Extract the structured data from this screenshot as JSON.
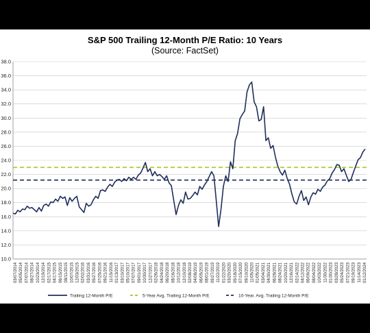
{
  "chart_data": {
    "type": "line",
    "title": "S&P 500 Trailing 12-Month P/E Ratio: 10 Years",
    "subtitle": "(Source: FactSet)",
    "ylim": [
      10.0,
      38.0
    ],
    "y_ticks": [
      "10.0",
      "12.0",
      "14.0",
      "16.0",
      "18.0",
      "20.0",
      "22.0",
      "24.0",
      "26.0",
      "28.0",
      "30.0",
      "32.0",
      "34.0",
      "36.0",
      "38.0"
    ],
    "x_ticks": [
      "03/07/2014",
      "05/05/2014",
      "07/07/2014",
      "08/27/2014",
      "10/23/2014",
      "12/19/2014",
      "02/17/2015",
      "04/17/2015",
      "06/15/2015",
      "08/11/2015",
      "10/07/2015",
      "12/03/2015",
      "02/02/2016",
      "03/31/2016",
      "05/27/2016",
      "07/25/2016",
      "09/21/2016",
      "11/15/2016",
      "01/13/2017",
      "03/10/2017",
      "05/10/2017",
      "07/07/2017",
      "09/01/2017",
      "10/30/2017",
      "12/27/2017",
      "02/26/2018",
      "04/24/2018",
      "06/20/2018",
      "08/16/2018",
      "10/12/2018",
      "12/10/2018",
      "02/08/2019",
      "04/08/2019",
      "06/05/2019",
      "08/01/2019",
      "09/27/2019",
      "11/22/2019",
      "01/22/2020",
      "03/20/2020",
      "05/18/2020",
      "07/15/2020",
      "09/10/2020",
      "11/05/2020",
      "01/05/2021",
      "03/04/2021",
      "04/30/2021",
      "06/28/2021",
      "08/24/2021",
      "10/20/2021",
      "12/16/2021",
      "02/14/2022",
      "04/12/2022",
      "06/09/2022",
      "08/04/2022",
      "10/03/2022",
      "11/30/2022",
      "01/30/2023",
      "03/28/2023",
      "05/24/2023",
      "07/21/2023",
      "09/19/2023",
      "11/14/2023",
      "01/12/2024"
    ],
    "series": [
      {
        "name": "Trailing 12-Month P/E",
        "color": "#1f2d5a",
        "style": "solid",
        "values": [
          16.5,
          16.4,
          16.9,
          16.7,
          17.1,
          17.0,
          17.5,
          17.2,
          17.3,
          17.0,
          16.7,
          17.3,
          16.8,
          17.6,
          17.8,
          17.5,
          18.1,
          18.0,
          18.5,
          18.2,
          18.9,
          18.6,
          18.8,
          17.6,
          18.7,
          18.2,
          18.6,
          18.9,
          17.4,
          17.0,
          16.6,
          17.9,
          17.5,
          17.7,
          18.4,
          18.9,
          18.6,
          19.7,
          19.8,
          19.6,
          20.2,
          20.6,
          20.3,
          20.9,
          21.2,
          21.3,
          21.0,
          21.4,
          21.1,
          21.6,
          21.3,
          21.6,
          21.3,
          21.9,
          22.2,
          22.9,
          23.7,
          22.4,
          22.8,
          21.8,
          22.4,
          21.8,
          22.0,
          21.7,
          21.3,
          21.8,
          20.8,
          20.4,
          18.3,
          16.3,
          17.6,
          18.4,
          17.9,
          19.5,
          18.5,
          18.6,
          19.0,
          19.5,
          19.1,
          20.3,
          19.9,
          20.5,
          21.0,
          21.7,
          22.4,
          21.8,
          18.2,
          14.6,
          17.1,
          20.3,
          21.8,
          21.0,
          23.8,
          22.8,
          26.8,
          27.8,
          29.9,
          30.5,
          31.0,
          33.7,
          34.7,
          35.1,
          32.3,
          31.6,
          29.6,
          29.8,
          31.6,
          26.8,
          27.2,
          25.7,
          26.1,
          24.5,
          23.2,
          22.4,
          21.9,
          22.6,
          21.4,
          20.6,
          19.2,
          18.1,
          17.8,
          18.9,
          19.7,
          18.3,
          18.8,
          17.7,
          18.8,
          19.4,
          19.2,
          19.9,
          19.6,
          20.2,
          20.5,
          21.1,
          21.4,
          22.2,
          22.7,
          23.4,
          23.3,
          22.4,
          22.8,
          21.9,
          21.0,
          21.3,
          22.3,
          23.2,
          24.1,
          24.4,
          25.2,
          25.6
        ]
      },
      {
        "name": "5-Year Avg. Trailing 12-Month P/E",
        "color": "#a8c42a",
        "style": "dashed",
        "value": 23.0
      },
      {
        "name": "10-Year. Avg. Trailing 12-Month P/E",
        "color": "#1f2d5a",
        "style": "dashed",
        "value": 21.2
      }
    ],
    "grid": "horizontal",
    "legend_position": "bottom"
  }
}
